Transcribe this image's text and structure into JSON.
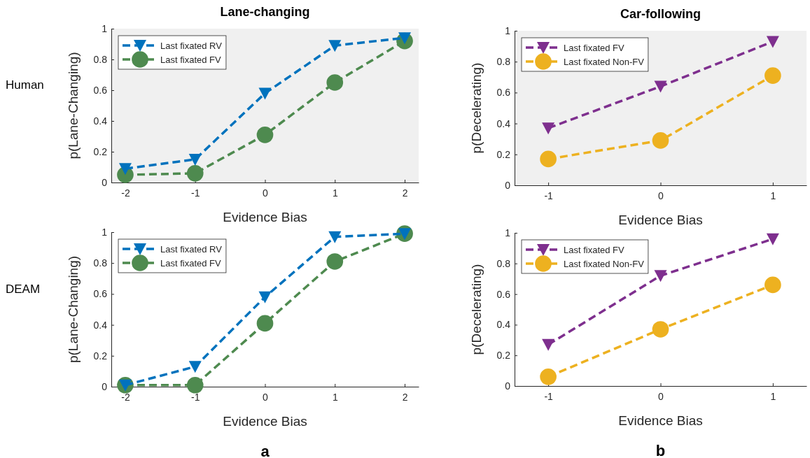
{
  "chart_data": [
    {
      "type": "line",
      "title": "Lane-changing",
      "xlabel": "Evidence Bias",
      "ylabel": "p(Lane-Changing)",
      "annotations": [
        "Human"
      ],
      "x": [
        -2,
        -1,
        0,
        1,
        2
      ],
      "xlim": [
        -2.2,
        2.2
      ],
      "xticks": [
        -2,
        -1,
        0,
        1,
        2
      ],
      "ylim": [
        0,
        1
      ],
      "yticks": [
        0,
        0.2,
        0.4,
        0.6,
        0.8,
        1
      ],
      "legend": "top left",
      "grid": false,
      "line_style": "dashed",
      "series": [
        {
          "name": "Last fixated RV",
          "color": "#0072bd",
          "marker": "triangle",
          "values": [
            0.09,
            0.15,
            0.58,
            0.89,
            0.94
          ]
        },
        {
          "name": "Last fixated FV",
          "color": "#4e8a4f",
          "marker": "circle",
          "values": [
            0.05,
            0.06,
            0.31,
            0.65,
            0.92
          ]
        }
      ]
    },
    {
      "type": "line",
      "title": "Car-following",
      "xlabel": "Evidence Bias",
      "ylabel": "p(Decelerating)",
      "x": [
        -1,
        0,
        1
      ],
      "xlim": [
        -1.3,
        1.3
      ],
      "xticks": [
        -1,
        0,
        1
      ],
      "ylim": [
        0,
        1
      ],
      "yticks": [
        0,
        0.2,
        0.4,
        0.6,
        0.8,
        1
      ],
      "legend": "top left",
      "grid": false,
      "line_style": "dashed",
      "series": [
        {
          "name": "Last fixated FV",
          "color": "#7e2f8e",
          "marker": "triangle",
          "values": [
            0.37,
            0.64,
            0.93
          ]
        },
        {
          "name": "Last fixated Non-FV",
          "color": "#edb120",
          "marker": "circle",
          "values": [
            0.17,
            0.29,
            0.71
          ]
        }
      ]
    },
    {
      "type": "line",
      "xlabel": "Evidence Bias",
      "ylabel": "p(Lane-Changing)",
      "annotations": [
        "DEAM",
        "a"
      ],
      "x": [
        -2,
        -1,
        0,
        1,
        2
      ],
      "xlim": [
        -2.2,
        2.2
      ],
      "xticks": [
        -2,
        -1,
        0,
        1,
        2
      ],
      "ylim": [
        0,
        1
      ],
      "yticks": [
        0,
        0.2,
        0.4,
        0.6,
        0.8,
        1
      ],
      "legend": "top left",
      "grid": false,
      "line_style": "dashed",
      "series": [
        {
          "name": "Last fixated RV",
          "color": "#0072bd",
          "marker": "triangle",
          "values": [
            0.01,
            0.13,
            0.58,
            0.97,
            0.99
          ]
        },
        {
          "name": "Last fixated FV",
          "color": "#4e8a4f",
          "marker": "circle",
          "values": [
            0.01,
            0.01,
            0.41,
            0.81,
            0.99
          ]
        }
      ]
    },
    {
      "type": "line",
      "xlabel": "Evidence Bias",
      "ylabel": "p(Decelerating)",
      "annotations": [
        "b"
      ],
      "x": [
        -1,
        0,
        1
      ],
      "xlim": [
        -1.3,
        1.3
      ],
      "xticks": [
        -1,
        0,
        1
      ],
      "ylim": [
        0,
        1
      ],
      "yticks": [
        0,
        0.2,
        0.4,
        0.6,
        0.8,
        1
      ],
      "legend": "top left",
      "grid": false,
      "line_style": "dashed",
      "series": [
        {
          "name": "Last fixated FV",
          "color": "#7e2f8e",
          "marker": "triangle",
          "values": [
            0.27,
            0.72,
            0.96
          ]
        },
        {
          "name": "Last fixated Non-FV",
          "color": "#edb120",
          "marker": "circle",
          "values": [
            0.06,
            0.37,
            0.66
          ]
        }
      ]
    }
  ]
}
